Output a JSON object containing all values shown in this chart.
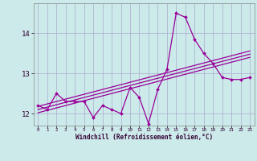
{
  "xlabel": "Windchill (Refroidissement éolien,°C)",
  "bg_color": "#cceaea",
  "grid_color": "#aaaacc",
  "line_color": "#990099",
  "x": [
    0,
    1,
    2,
    3,
    4,
    5,
    6,
    7,
    8,
    9,
    10,
    11,
    12,
    13,
    14,
    15,
    16,
    17,
    18,
    19,
    20,
    21,
    22,
    23
  ],
  "y_main": [
    12.2,
    12.1,
    12.5,
    12.3,
    12.3,
    12.3,
    11.9,
    12.2,
    12.1,
    12.0,
    12.65,
    12.4,
    11.75,
    12.6,
    13.1,
    14.5,
    14.4,
    13.85,
    13.5,
    13.25,
    12.9,
    12.85,
    12.85,
    12.9
  ],
  "y_reg1": [
    12.18,
    12.24,
    12.3,
    12.36,
    12.42,
    12.48,
    12.54,
    12.6,
    12.66,
    12.72,
    12.78,
    12.84,
    12.9,
    12.96,
    13.02,
    13.08,
    13.14,
    13.2,
    13.26,
    13.32,
    13.38,
    13.44,
    13.5,
    13.56
  ],
  "y_reg2": [
    12.1,
    12.16,
    12.22,
    12.28,
    12.34,
    12.4,
    12.46,
    12.52,
    12.58,
    12.64,
    12.7,
    12.76,
    12.82,
    12.88,
    12.94,
    13.0,
    13.06,
    13.12,
    13.18,
    13.24,
    13.3,
    13.36,
    13.42,
    13.48
  ],
  "y_reg3": [
    12.02,
    12.08,
    12.14,
    12.2,
    12.26,
    12.32,
    12.38,
    12.44,
    12.5,
    12.56,
    12.62,
    12.68,
    12.74,
    12.8,
    12.86,
    12.92,
    12.98,
    13.04,
    13.1,
    13.16,
    13.22,
    13.28,
    13.34,
    13.4
  ],
  "ylim": [
    11.7,
    14.75
  ],
  "yticks": [
    12,
    13,
    14
  ],
  "xlim": [
    -0.5,
    23.5
  ],
  "xticks": [
    0,
    1,
    2,
    3,
    4,
    5,
    6,
    7,
    8,
    9,
    10,
    11,
    12,
    13,
    14,
    15,
    16,
    17,
    18,
    19,
    20,
    21,
    22,
    23
  ]
}
